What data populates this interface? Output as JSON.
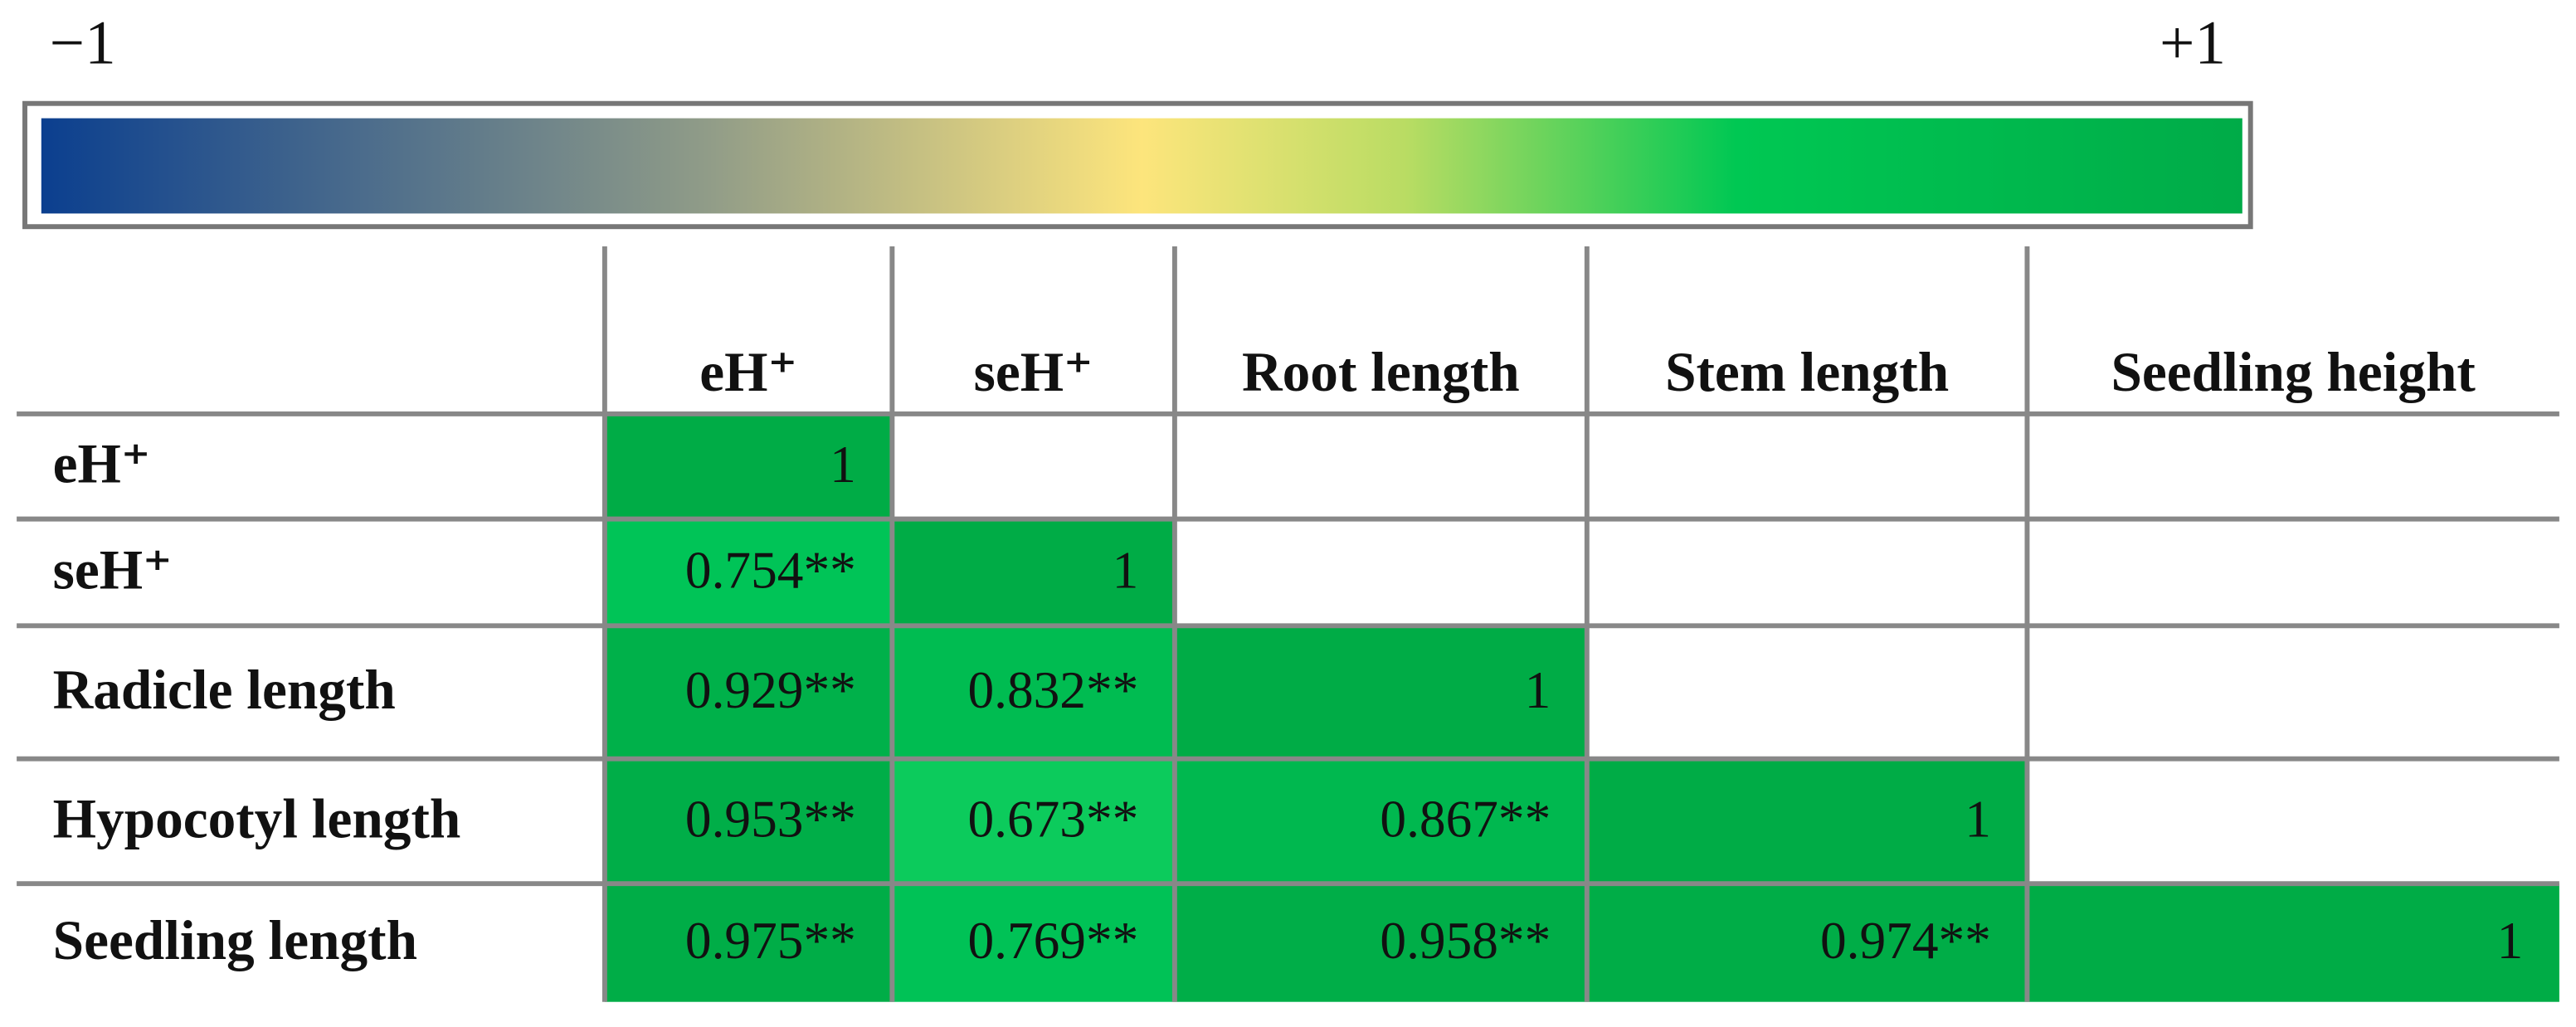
{
  "colorbar": {
    "min_label": "−1",
    "max_label": "+1"
  },
  "table": {
    "columns": [
      "eH⁺",
      "seH⁺",
      "Root length",
      "Stem length",
      "Seedling height"
    ],
    "rows": [
      {
        "label": "eH⁺",
        "cells": [
          "1"
        ],
        "colors": [
          "#00ac46"
        ]
      },
      {
        "label": "seH⁺",
        "cells": [
          "0.754**",
          "1"
        ],
        "colors": [
          "#00c457",
          "#00ac46"
        ]
      },
      {
        "label": "Radicle length",
        "cells": [
          "0.929**",
          "0.832**",
          "1"
        ],
        "colors": [
          "#00b14a",
          "#00bc51",
          "#00ac46"
        ]
      },
      {
        "label": "Hypocotyl length",
        "cells": [
          "0.953**",
          "0.673**",
          "0.867**",
          "1"
        ],
        "colors": [
          "#00ae48",
          "#0ccb5c",
          "#00b84f",
          "#00ac46"
        ]
      },
      {
        "label": "Seedling length",
        "cells": [
          "0.975**",
          "0.769**",
          "0.958**",
          "0.974**",
          "1"
        ],
        "colors": [
          "#00ad47",
          "#00c256",
          "#00ae48",
          "#00ad47",
          "#00ac46"
        ]
      }
    ]
  }
}
